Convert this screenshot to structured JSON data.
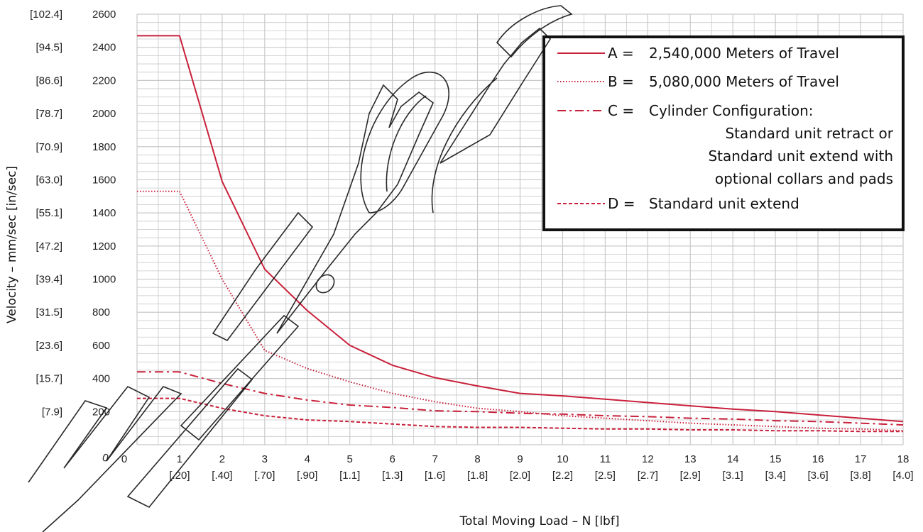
{
  "chart_data": {
    "type": "line",
    "xlabel": "Total Moving Load – N [lbf]",
    "ylabel": "Velocity – mm/sec [in/sec]",
    "xlim": [
      0,
      18
    ],
    "ylim": [
      0,
      2600
    ],
    "x_ticks": [
      {
        "value": 0,
        "label": "0",
        "sub": ""
      },
      {
        "value": 1,
        "label": "1",
        "sub": "[.20]"
      },
      {
        "value": 2,
        "label": "2",
        "sub": "[.40]"
      },
      {
        "value": 3,
        "label": "3",
        "sub": "[.70]"
      },
      {
        "value": 4,
        "label": "4",
        "sub": "[.90]"
      },
      {
        "value": 5,
        "label": "5",
        "sub": "[1.1]"
      },
      {
        "value": 6,
        "label": "6",
        "sub": "[1.3]"
      },
      {
        "value": 7,
        "label": "7",
        "sub": "[1.6]"
      },
      {
        "value": 8,
        "label": "8",
        "sub": "[1.8]"
      },
      {
        "value": 9,
        "label": "9",
        "sub": "[2.0]"
      },
      {
        "value": 10,
        "label": "10",
        "sub": "[2.2]"
      },
      {
        "value": 11,
        "label": "11",
        "sub": "[2.5]"
      },
      {
        "value": 12,
        "label": "12",
        "sub": "[2.7]"
      },
      {
        "value": 13,
        "label": "13",
        "sub": "[2.9]"
      },
      {
        "value": 14,
        "label": "14",
        "sub": "[3.1]"
      },
      {
        "value": 15,
        "label": "15",
        "sub": "[3.4]"
      },
      {
        "value": 16,
        "label": "16",
        "sub": "[3.6]"
      },
      {
        "value": 17,
        "label": "17",
        "sub": "[3.8]"
      },
      {
        "value": 18,
        "label": "18",
        "sub": "[4.0]"
      }
    ],
    "y_ticks": [
      {
        "value": 0,
        "label": "0",
        "alt": ""
      },
      {
        "value": 200,
        "label": "200",
        "alt": "[7.9]"
      },
      {
        "value": 400,
        "label": "400",
        "alt": "[15.7]"
      },
      {
        "value": 600,
        "label": "600",
        "alt": "[23.6]"
      },
      {
        "value": 800,
        "label": "800",
        "alt": "[31.5]"
      },
      {
        "value": 1000,
        "label": "1000",
        "alt": "[39.4]"
      },
      {
        "value": 1200,
        "label": "1200",
        "alt": "[47.2]"
      },
      {
        "value": 1400,
        "label": "1400",
        "alt": "[55.1]"
      },
      {
        "value": 1600,
        "label": "1600",
        "alt": "[63.0]"
      },
      {
        "value": 1800,
        "label": "1800",
        "alt": "[70.9]"
      },
      {
        "value": 2000,
        "label": "2000",
        "alt": "[78.7]"
      },
      {
        "value": 2200,
        "label": "2200",
        "alt": "[86.6]"
      },
      {
        "value": 2400,
        "label": "2400",
        "alt": "[94.5]"
      },
      {
        "value": 2600,
        "label": "2600",
        "alt": "[102.4]"
      }
    ],
    "x_minor_step": 0.5,
    "y_minor_step": 50,
    "grid": true,
    "legend_position": "top-right",
    "series": [
      {
        "name": "A",
        "legend_prefix": "A =",
        "legend_lines": [
          "2,540,000 Meters of Travel"
        ],
        "style": "solid",
        "x": [
          0,
          1,
          2,
          3,
          4,
          5,
          6,
          7,
          8,
          9,
          10,
          11,
          12,
          13,
          14,
          15,
          16,
          17,
          18
        ],
        "y": [
          2470,
          2470,
          1590,
          1060,
          810,
          600,
          480,
          405,
          355,
          310,
          295,
          275,
          255,
          235,
          215,
          200,
          180,
          160,
          140
        ]
      },
      {
        "name": "B",
        "legend_prefix": "B =",
        "legend_lines": [
          "5,080,000 Meters of Travel"
        ],
        "style": "dotted",
        "x": [
          0,
          1,
          2,
          3,
          4,
          5,
          6,
          7,
          8,
          9,
          10,
          11,
          12,
          13,
          14,
          15,
          16,
          17,
          18
        ],
        "y": [
          1530,
          1530,
          1000,
          570,
          460,
          380,
          310,
          260,
          220,
          200,
          175,
          160,
          145,
          130,
          120,
          110,
          100,
          95,
          85
        ]
      },
      {
        "name": "C",
        "legend_prefix": "C =",
        "legend_lines": [
          "Cylinder Configuration:",
          "Standard unit retract or",
          "Standard unit extend with",
          "optional collars and pads"
        ],
        "style": "dashdot",
        "x": [
          0,
          1,
          2,
          3,
          4,
          5,
          6,
          7,
          8,
          9,
          10,
          11,
          12,
          13,
          14,
          15,
          16,
          17,
          18
        ],
        "y": [
          440,
          440,
          370,
          310,
          270,
          240,
          225,
          205,
          200,
          190,
          185,
          175,
          170,
          160,
          155,
          145,
          140,
          130,
          120
        ]
      },
      {
        "name": "D",
        "legend_prefix": "D =",
        "legend_lines": [
          "Standard unit extend"
        ],
        "style": "dashed",
        "x": [
          0,
          1,
          2,
          3,
          4,
          5,
          6,
          7,
          8,
          9,
          10,
          11,
          12,
          13,
          14,
          15,
          16,
          17,
          18
        ],
        "y": [
          280,
          280,
          220,
          175,
          150,
          140,
          125,
          110,
          105,
          105,
          100,
          95,
          95,
          90,
          90,
          85,
          85,
          80,
          80
        ]
      }
    ]
  },
  "colors": {
    "series": "#c8203a",
    "grid": "#c9c9c9",
    "legend_border": "#111111",
    "watermark": "#111111"
  },
  "watermark": {
    "text": "www.magi",
    "icon": "outline-watermark"
  }
}
